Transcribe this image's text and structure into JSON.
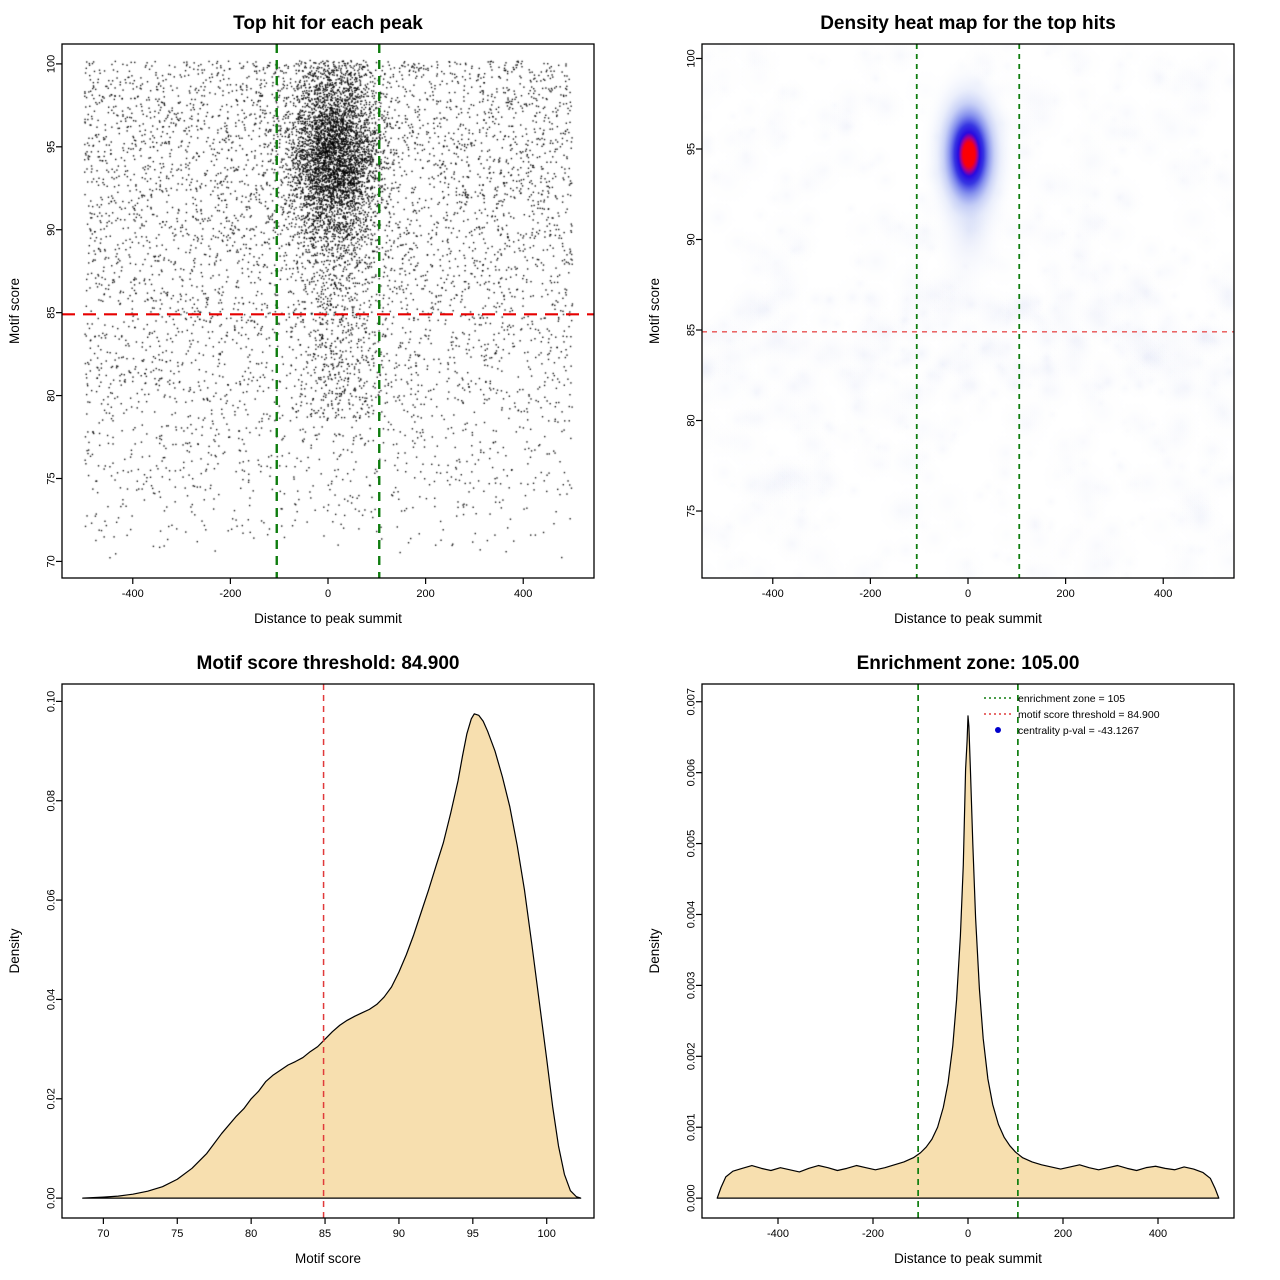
{
  "figure": {
    "background": "#ffffff"
  },
  "chart_data": [
    {
      "id": "top-hits-scatter",
      "type": "scatter",
      "title": "Top hit for each peak",
      "xlabel": "Distance to peak summit",
      "ylabel": "Motif score",
      "xlim": [
        -545,
        545
      ],
      "ylim": [
        69,
        101.2
      ],
      "xticks": [
        "-400",
        "-200",
        "0",
        "200",
        "400"
      ],
      "yticks": [
        "70",
        "75",
        "80",
        "85",
        "90",
        "95",
        "100"
      ],
      "point_color": "#000000",
      "generator": {
        "seed": 42,
        "background": {
          "n": 5200,
          "x_range": [
            -500,
            500
          ],
          "y_base": 70.2,
          "y_span": 30,
          "y_exponent": 0.6
        },
        "cluster": {
          "n": 3900,
          "x_mean": 12,
          "x_sd": 48,
          "y_mean": 94.6,
          "y_sd": 2.7,
          "y_cap": 100.25
        },
        "tail": {
          "n": 600,
          "x_mean": 15,
          "x_sd": 42,
          "y_range": [
            78.5,
            93
          ]
        }
      },
      "vlines": {
        "x": [
          -105,
          105
        ],
        "color": "#0f7d0f",
        "width": 2.4,
        "dash": "9 7"
      },
      "hline": {
        "y": 84.9,
        "color": "#e60000",
        "width": 2.2,
        "dash": "13 8"
      }
    },
    {
      "id": "top-hits-heatmap",
      "type": "heatmap",
      "title": "Density heat map for the top hits",
      "xlabel": "Distance to peak summit",
      "ylabel": "Motif score",
      "xlim": [
        -545,
        545
      ],
      "ylim": [
        71.3,
        100.8
      ],
      "xticks": [
        "-400",
        "-200",
        "0",
        "200",
        "400"
      ],
      "yticks": [
        "75",
        "80",
        "85",
        "90",
        "95",
        "100"
      ],
      "palette": [
        "#ffffff",
        "#e6ecfb",
        "#98a8f0",
        "#2d2de1",
        "#ff0000"
      ],
      "generator": {
        "seed": 7,
        "noise": {
          "n": 560,
          "radius": [
            6,
            26
          ],
          "alpha": [
            0.025,
            0.06
          ]
        },
        "band": {
          "n": 140,
          "y_range": [
            81.5,
            87
          ]
        },
        "hotspot": {
          "x": 2,
          "y": 94.7,
          "rx_units": 100,
          "ry_units": 5.5
        },
        "smear": {
          "x": 2,
          "y": 90.5,
          "rx_units": 80,
          "ry_units": 3.8,
          "alpha": 0.22
        }
      },
      "vlines": {
        "x": [
          -105,
          105
        ],
        "color": "#0f7d0f",
        "width": 1.8,
        "dash": "5 5"
      },
      "hline": {
        "y": 84.9,
        "color": "#e85050",
        "width": 1.4,
        "dash": "5 5"
      }
    },
    {
      "id": "motif-score-density",
      "type": "area",
      "title": "Motif score threshold: 84.900",
      "xlabel": "Motif score",
      "ylabel": "Density",
      "xlim": [
        67.2,
        103.2
      ],
      "ylim": [
        -0.004,
        0.1035
      ],
      "xticks": [
        "70",
        "75",
        "80",
        "85",
        "90",
        "95",
        "100"
      ],
      "yticks": [
        "0.00",
        "0.02",
        "0.04",
        "0.06",
        "0.08",
        "0.10"
      ],
      "fill": "#f7dfaf",
      "line_color": "#000000",
      "curve": {
        "x": [
          68.6,
          70,
          71,
          72,
          73,
          74,
          75,
          76,
          77,
          78,
          79,
          79.5,
          80,
          80.5,
          81,
          81.5,
          82,
          82.5,
          83,
          83.5,
          84,
          84.5,
          85,
          85.5,
          86,
          86.5,
          87,
          87.5,
          88,
          88.5,
          89,
          89.5,
          90,
          90.5,
          91,
          91.5,
          92,
          92.5,
          93,
          93.5,
          94,
          94.3,
          94.6,
          94.9,
          95.1,
          95.4,
          95.7,
          96,
          96.5,
          97,
          97.5,
          98,
          98.5,
          99,
          99.5,
          100,
          100.4,
          100.8,
          101.2,
          101.6,
          102,
          102.3
        ],
        "y": [
          0,
          0.0002,
          0.0004,
          0.0008,
          0.0014,
          0.0023,
          0.0038,
          0.006,
          0.009,
          0.013,
          0.0165,
          0.018,
          0.02,
          0.0215,
          0.0235,
          0.0248,
          0.0258,
          0.0268,
          0.0275,
          0.0283,
          0.0295,
          0.0305,
          0.032,
          0.0335,
          0.0348,
          0.0358,
          0.0366,
          0.0373,
          0.038,
          0.039,
          0.0405,
          0.0425,
          0.0455,
          0.049,
          0.053,
          0.0575,
          0.062,
          0.0668,
          0.0715,
          0.0775,
          0.084,
          0.089,
          0.0935,
          0.0965,
          0.0975,
          0.0972,
          0.096,
          0.094,
          0.09,
          0.0848,
          0.0788,
          0.071,
          0.062,
          0.051,
          0.0395,
          0.028,
          0.0185,
          0.0105,
          0.0048,
          0.0015,
          0.0003,
          0
        ]
      },
      "vlines": {
        "x": [
          84.9
        ],
        "color": "#e03a3a",
        "width": 1.5,
        "dash": "6 5"
      }
    },
    {
      "id": "distance-density",
      "type": "area",
      "title": "Enrichment zone: 105.00",
      "xlabel": "Distance to peak summit",
      "ylabel": "Density",
      "xlim": [
        -560,
        560
      ],
      "ylim": [
        -0.00028,
        0.00725
      ],
      "xticks": [
        "-400",
        "-200",
        "0",
        "200",
        "400"
      ],
      "yticks": [
        "0.000",
        "0.001",
        "0.002",
        "0.003",
        "0.004",
        "0.005",
        "0.006",
        "0.007"
      ],
      "fill": "#f7dfaf",
      "line_color": "#000000",
      "curve": {
        "x": [
          -528,
          -520,
          -510,
          -495,
          -475,
          -455,
          -435,
          -415,
          -395,
          -375,
          -355,
          -335,
          -315,
          -295,
          -275,
          -255,
          -235,
          -215,
          -195,
          -175,
          -155,
          -135,
          -115,
          -100,
          -88,
          -76,
          -64,
          -52,
          -42,
          -32,
          -24,
          -16,
          -10,
          -5,
          -2,
          0,
          2,
          5,
          10,
          16,
          24,
          32,
          42,
          52,
          64,
          76,
          88,
          100,
          115,
          135,
          155,
          175,
          195,
          215,
          235,
          255,
          275,
          295,
          315,
          335,
          355,
          375,
          395,
          415,
          435,
          455,
          475,
          495,
          510,
          520,
          528
        ],
        "y": [
          0,
          0.00015,
          0.0003,
          0.00038,
          0.00042,
          0.00046,
          0.00042,
          0.00039,
          0.00043,
          0.0004,
          0.00037,
          0.00042,
          0.00046,
          0.00043,
          0.00039,
          0.00042,
          0.00046,
          0.00043,
          0.0004,
          0.00043,
          0.00047,
          0.00051,
          0.00057,
          0.00064,
          0.00072,
          0.00083,
          0.001,
          0.00128,
          0.00162,
          0.00215,
          0.0028,
          0.0037,
          0.0047,
          0.00605,
          0.00645,
          0.0068,
          0.00665,
          0.00605,
          0.005,
          0.00395,
          0.00295,
          0.00225,
          0.00168,
          0.00132,
          0.00104,
          0.00086,
          0.00074,
          0.00065,
          0.00057,
          0.00051,
          0.00047,
          0.00044,
          0.00041,
          0.00044,
          0.00047,
          0.00043,
          0.0004,
          0.00043,
          0.00046,
          0.00042,
          0.00039,
          0.00043,
          0.00045,
          0.00042,
          0.0004,
          0.00044,
          0.00041,
          0.00036,
          0.00028,
          0.00014,
          0
        ]
      },
      "vlines": {
        "x": [
          -105,
          105
        ],
        "color": "#0f7d0f",
        "width": 1.7,
        "dash": "6 5"
      },
      "legend": [
        {
          "marker": "line",
          "color": "#0f7d0f",
          "label": "enrichment zone = 105"
        },
        {
          "marker": "line",
          "color": "#e03a3a",
          "label": "motif score threshold = 84.900"
        },
        {
          "marker": "point",
          "color": "#0000cc",
          "label": "centrality p-val = -43.1267"
        }
      ]
    }
  ]
}
